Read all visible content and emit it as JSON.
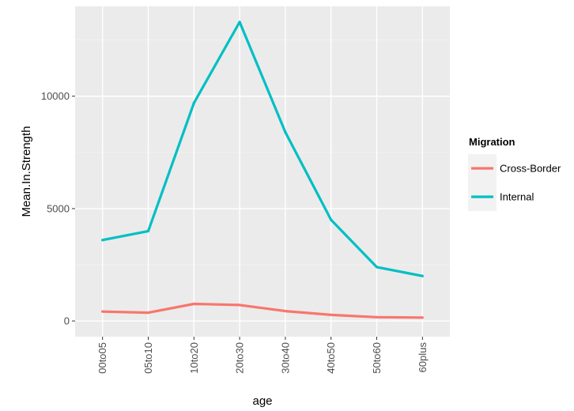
{
  "chart_data": {
    "type": "line",
    "title": "",
    "xlabel": "age",
    "ylabel": "Mean.In.Strength",
    "categories": [
      "00to05",
      "05to10",
      "10to20",
      "20to30",
      "30to40",
      "40to50",
      "50to60",
      "60plus"
    ],
    "ylim": [
      -700,
      14000
    ],
    "yticks": [
      0,
      5000,
      10000
    ],
    "ytick_labels": [
      "0",
      "5000",
      "10000"
    ],
    "grid": true,
    "legend": {
      "title": "Migration",
      "position": "right"
    },
    "series": [
      {
        "name": "Cross-Border",
        "color": "#F8766D",
        "values": [
          420,
          370,
          760,
          710,
          440,
          270,
          170,
          150
        ]
      },
      {
        "name": "Internal",
        "color": "#00BFC4",
        "values": [
          3600,
          4000,
          9700,
          13300,
          8400,
          4500,
          2400,
          2000
        ]
      }
    ]
  }
}
